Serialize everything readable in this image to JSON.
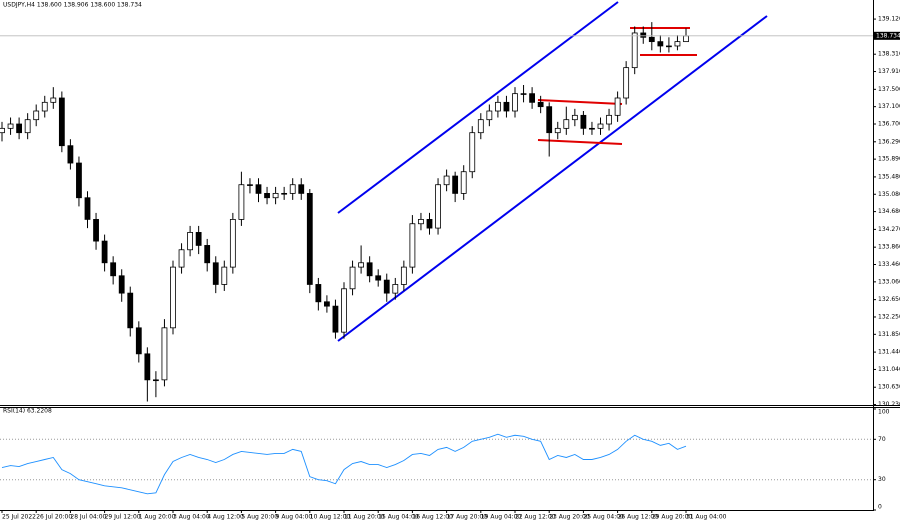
{
  "chart_data": {
    "type": "candlestick",
    "title": "USDJPY,H4  138.600 138.906 138.600 138.734",
    "last_price_label": "138.734",
    "up_color": "#ffffff",
    "down_color": "#000000",
    "edge_color": "#000000",
    "open": [
      136.5,
      136.6,
      136.7,
      136.5,
      136.8,
      137.0,
      137.2,
      137.3,
      136.2,
      135.8,
      135.0,
      134.5,
      134.0,
      133.5,
      133.2,
      132.8,
      132.0,
      131.4,
      130.8,
      130.8,
      132.0,
      133.4,
      133.8,
      134.2,
      133.9,
      133.5,
      133.0,
      133.4,
      134.5,
      135.3,
      135.3,
      135.1,
      135.0,
      135.1,
      135.1,
      135.3,
      135.1,
      133.0,
      132.6,
      132.5,
      131.9,
      132.9,
      133.4,
      133.5,
      133.2,
      133.1,
      132.8,
      133.0,
      133.4,
      134.4,
      134.5,
      134.3,
      135.3,
      135.5,
      135.1,
      135.6,
      136.5,
      136.8,
      137.0,
      137.2,
      137.0,
      137.4,
      137.4,
      137.2,
      137.1,
      136.5,
      136.6,
      136.8,
      136.9,
      136.6,
      136.6,
      136.7,
      136.9,
      137.3,
      138.0,
      138.8,
      138.7,
      138.6,
      138.5,
      138.5,
      138.6
    ],
    "high": [
      136.75,
      136.85,
      136.85,
      136.95,
      137.15,
      137.35,
      137.55,
      137.45,
      136.35,
      135.95,
      135.15,
      134.65,
      134.15,
      133.65,
      133.35,
      132.95,
      132.15,
      131.55,
      131.0,
      132.2,
      133.55,
      133.95,
      134.35,
      134.35,
      134.05,
      133.65,
      133.55,
      134.65,
      135.6,
      135.45,
      135.45,
      135.25,
      135.25,
      135.25,
      135.45,
      135.45,
      135.2,
      133.15,
      132.75,
      132.65,
      133.05,
      133.55,
      133.9,
      133.65,
      133.35,
      133.25,
      133.15,
      133.55,
      134.6,
      134.65,
      134.65,
      135.45,
      135.65,
      135.6,
      135.75,
      136.65,
      136.95,
      137.15,
      137.35,
      137.35,
      137.55,
      137.6,
      137.55,
      137.35,
      137.2,
      136.75,
      137.1,
      137.05,
      137.0,
      136.75,
      136.85,
      137.05,
      137.45,
      138.15,
      138.95,
      138.95,
      139.05,
      138.75,
      138.7,
      138.75,
      138.906
    ],
    "low": [
      136.3,
      136.45,
      136.35,
      136.35,
      136.65,
      136.85,
      137.05,
      136.05,
      135.65,
      134.8,
      134.3,
      133.8,
      133.3,
      133.0,
      132.6,
      131.8,
      131.2,
      130.3,
      130.4,
      130.65,
      131.85,
      133.25,
      133.65,
      133.7,
      133.3,
      132.8,
      132.85,
      133.25,
      134.35,
      135.1,
      134.9,
      134.85,
      134.85,
      134.95,
      134.95,
      134.95,
      132.8,
      132.4,
      132.35,
      131.75,
      131.75,
      132.75,
      133.25,
      133.05,
      132.95,
      132.6,
      132.65,
      132.85,
      133.25,
      134.25,
      134.15,
      134.15,
      135.15,
      134.9,
      134.95,
      135.45,
      136.35,
      136.65,
      136.85,
      136.85,
      136.85,
      137.2,
      137.05,
      136.95,
      135.95,
      136.35,
      136.45,
      136.65,
      136.45,
      136.45,
      136.45,
      136.55,
      136.75,
      137.15,
      137.85,
      138.55,
      138.4,
      138.35,
      138.35,
      138.4,
      138.6
    ],
    "close": [
      136.6,
      136.7,
      136.5,
      136.8,
      137.0,
      137.2,
      137.3,
      136.2,
      135.8,
      135.0,
      134.5,
      134.0,
      133.5,
      133.2,
      132.8,
      132.0,
      131.4,
      130.8,
      130.8,
      132.0,
      133.4,
      133.8,
      134.2,
      133.9,
      133.5,
      133.0,
      133.4,
      134.5,
      135.3,
      135.3,
      135.1,
      135.0,
      135.1,
      135.1,
      135.3,
      135.1,
      133.0,
      132.6,
      132.5,
      131.9,
      132.9,
      133.4,
      133.5,
      133.2,
      133.1,
      132.8,
      133.0,
      133.4,
      134.4,
      134.5,
      134.3,
      135.3,
      135.5,
      135.1,
      135.6,
      136.5,
      136.8,
      137.0,
      137.2,
      137.0,
      137.4,
      137.4,
      137.2,
      137.1,
      136.5,
      136.6,
      136.8,
      136.9,
      136.6,
      136.6,
      136.7,
      136.9,
      137.3,
      138.0,
      138.8,
      138.7,
      138.6,
      138.5,
      138.5,
      138.6,
      138.734
    ],
    "ylim": [
      130.22,
      139.56
    ],
    "yticks": [
      {
        "value": 139.12,
        "label": "139.120"
      },
      {
        "value": 138.31,
        "label": "138.310"
      },
      {
        "value": 137.91,
        "label": "137.910"
      },
      {
        "value": 137.5,
        "label": "137.500"
      },
      {
        "value": 137.1,
        "label": "137.100"
      },
      {
        "value": 136.7,
        "label": "136.700"
      },
      {
        "value": 136.29,
        "label": "136.290"
      },
      {
        "value": 135.89,
        "label": "135.890"
      },
      {
        "value": 135.48,
        "label": "135.480"
      },
      {
        "value": 135.08,
        "label": "135.080"
      },
      {
        "value": 134.68,
        "label": "134.680"
      },
      {
        "value": 134.27,
        "label": "134.270"
      },
      {
        "value": 133.86,
        "label": "133.860"
      },
      {
        "value": 133.46,
        "label": "133.460"
      },
      {
        "value": 133.06,
        "label": "133.060"
      },
      {
        "value": 132.65,
        "label": "132.650"
      },
      {
        "value": 132.25,
        "label": "132.250"
      },
      {
        "value": 131.85,
        "label": "131.850"
      },
      {
        "value": 131.44,
        "label": "131.440"
      },
      {
        "value": 131.04,
        "label": "131.040"
      },
      {
        "value": 130.63,
        "label": "130.630"
      },
      {
        "value": 130.23,
        "label": "130.230"
      }
    ],
    "xticks": [
      {
        "value": 0,
        "label": "25 Jul 2022"
      },
      {
        "value": 4,
        "label": "26 Jul 20:00"
      },
      {
        "value": 8,
        "label": "28 Jul 04:00"
      },
      {
        "value": 12,
        "label": "29 Jul 12:00"
      },
      {
        "value": 16,
        "label": "1 Aug 20:00"
      },
      {
        "value": 20,
        "label": "3 Aug 04:00"
      },
      {
        "value": 24,
        "label": "4 Aug 12:00"
      },
      {
        "value": 28,
        "label": "5 Aug 20:00"
      },
      {
        "value": 32,
        "label": "9 Aug 04:00"
      },
      {
        "value": 36,
        "label": "10 Aug 12:00"
      },
      {
        "value": 40,
        "label": "11 Aug 20:00"
      },
      {
        "value": 44,
        "label": "15 Aug 04:00"
      },
      {
        "value": 48,
        "label": "16 Aug 12:00"
      },
      {
        "value": 52,
        "label": "17 Aug 20:00"
      },
      {
        "value": 56,
        "label": "19 Aug 04:00"
      },
      {
        "value": 60,
        "label": "22 Aug 12:00"
      },
      {
        "value": 64,
        "label": "23 Aug 20:00"
      },
      {
        "value": 68,
        "label": "25 Aug 04:00"
      },
      {
        "value": 72,
        "label": "26 Aug 12:00"
      },
      {
        "value": 76,
        "label": "29 Aug 20:00"
      },
      {
        "value": 80,
        "label": "31 Aug 04:00"
      }
    ],
    "rsi": {
      "title": "RSI(14) 63.2208",
      "color": "#1e90ff",
      "values": [
        42,
        44,
        43,
        46,
        48,
        50,
        52,
        40,
        36,
        30,
        28,
        26,
        24,
        23,
        22,
        20,
        18,
        16,
        17,
        35,
        48,
        52,
        55,
        52,
        50,
        47,
        50,
        55,
        58,
        57,
        56,
        55,
        56,
        56,
        60,
        58,
        33,
        30,
        29,
        26,
        40,
        46,
        48,
        45,
        45,
        42,
        45,
        49,
        55,
        56,
        54,
        60,
        62,
        58,
        62,
        68,
        70,
        72,
        75,
        72,
        74,
        73,
        70,
        68,
        50,
        54,
        52,
        55,
        50,
        50,
        52,
        55,
        60,
        68,
        74,
        70,
        68,
        64,
        66,
        60,
        63.2208
      ],
      "ylim": [
        0,
        100
      ],
      "yticks": [
        100,
        70,
        30,
        0
      ]
    }
  }
}
